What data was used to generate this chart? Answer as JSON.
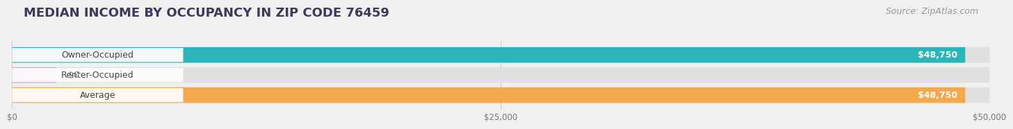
{
  "title": "MEDIAN INCOME BY OCCUPANCY IN ZIP CODE 76459",
  "source": "Source: ZipAtlas.com",
  "categories": [
    "Owner-Occupied",
    "Renter-Occupied",
    "Average"
  ],
  "values": [
    48750,
    0,
    48750
  ],
  "bar_colors": [
    "#2ab5b8",
    "#c0a8d0",
    "#f5a94c"
  ],
  "max_value": 50000,
  "x_ticks": [
    0,
    25000,
    50000
  ],
  "x_tick_labels": [
    "$0",
    "$25,000",
    "$50,000"
  ],
  "value_labels": [
    "$48,750",
    "$0",
    "$48,750"
  ],
  "background_color": "#f0f0f0",
  "bar_bg_color": "#e0e0e0",
  "title_fontsize": 13,
  "source_fontsize": 9,
  "label_fontsize": 9,
  "value_fontsize": 9
}
